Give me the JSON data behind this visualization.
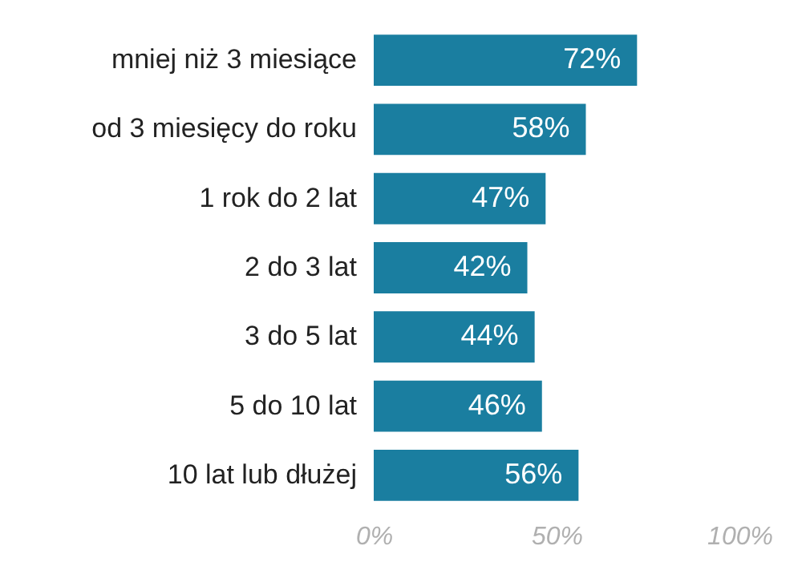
{
  "chart_data": {
    "type": "bar",
    "orientation": "horizontal",
    "categories": [
      "mniej niż 3 miesiące",
      "od 3 miesięcy do roku",
      "1 rok do 2 lat",
      "2 do 3 lat",
      "3 do 5 lat",
      "5 do 10 lat",
      "10 lat lub dłużej"
    ],
    "values": [
      72,
      58,
      47,
      42,
      44,
      46,
      56
    ],
    "value_labels": [
      "72%",
      "58%",
      "47%",
      "42%",
      "44%",
      "46%",
      "56%"
    ],
    "color": "#1a7ea0",
    "xlim": [
      0,
      100
    ],
    "xticks": [
      {
        "value": 0,
        "label": "0%"
      },
      {
        "value": 50,
        "label": "50%"
      },
      {
        "value": 100,
        "label": "100%"
      }
    ],
    "grid": false
  }
}
